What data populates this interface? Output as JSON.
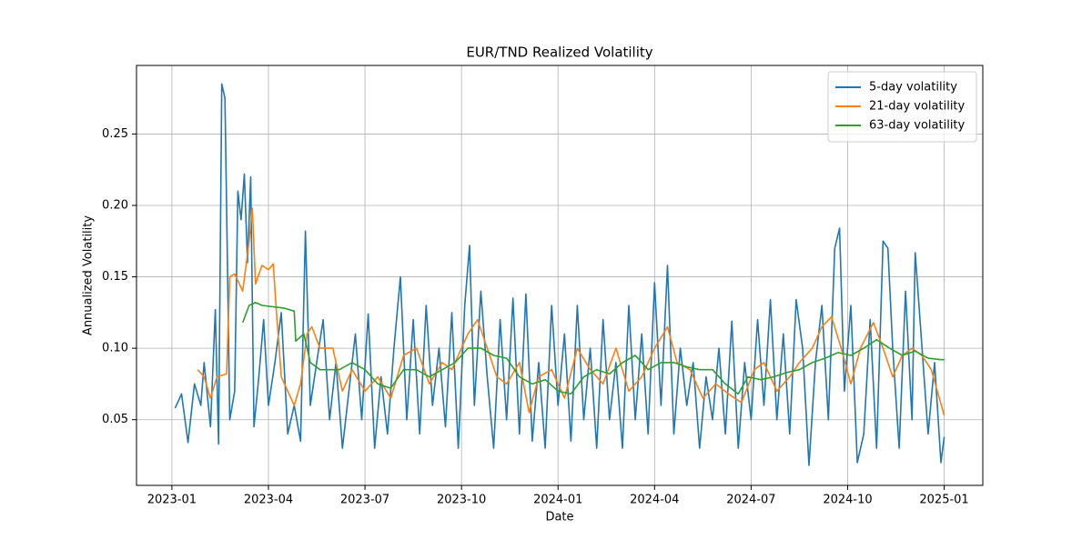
{
  "chart_data": {
    "type": "line",
    "title": "EUR/TND Realized Volatility",
    "xlabel": "Date",
    "ylabel": "Annualized Volatility",
    "grid": true,
    "legend": "upper right",
    "xlim": [
      -1.1,
      25.2
    ],
    "ylim": [
      0.004,
      0.298
    ],
    "xticks": [
      {
        "value": 0,
        "label": "2023-01"
      },
      {
        "value": 3,
        "label": "2023-04"
      },
      {
        "value": 6,
        "label": "2023-07"
      },
      {
        "value": 9,
        "label": "2023-10"
      },
      {
        "value": 12,
        "label": "2024-01"
      },
      {
        "value": 15,
        "label": "2024-04"
      },
      {
        "value": 18,
        "label": "2024-07"
      },
      {
        "value": 21,
        "label": "2024-10"
      },
      {
        "value": 24,
        "label": "2025-01"
      }
    ],
    "yticks": [
      0.05,
      {
        "value": 0.1,
        "label": "0.10"
      },
      0.15,
      {
        "value": 0.2,
        "label": "0.20"
      },
      0.25
    ],
    "series": [
      {
        "name": "5-day volatility",
        "color": "#1f77b4",
        "x": [
          0.1,
          0.3,
          0.5,
          0.7,
          0.9,
          1.0,
          1.2,
          1.35,
          1.45,
          1.55,
          1.65,
          1.8,
          1.95,
          2.05,
          2.15,
          2.25,
          2.35,
          2.45,
          2.55,
          2.7,
          2.85,
          3.0,
          3.2,
          3.4,
          3.6,
          3.8,
          4.0,
          4.15,
          4.3,
          4.5,
          4.7,
          4.9,
          5.1,
          5.3,
          5.5,
          5.7,
          5.9,
          6.1,
          6.3,
          6.5,
          6.7,
          6.9,
          7.1,
          7.3,
          7.5,
          7.7,
          7.9,
          8.1,
          8.3,
          8.5,
          8.7,
          8.9,
          9.1,
          9.25,
          9.4,
          9.6,
          9.8,
          10.0,
          10.2,
          10.4,
          10.6,
          10.8,
          11.0,
          11.2,
          11.4,
          11.6,
          11.8,
          12.0,
          12.2,
          12.4,
          12.6,
          12.8,
          13.0,
          13.2,
          13.4,
          13.6,
          13.8,
          14.0,
          14.2,
          14.4,
          14.6,
          14.8,
          15.0,
          15.2,
          15.4,
          15.6,
          15.8,
          16.0,
          16.2,
          16.4,
          16.6,
          16.8,
          17.0,
          17.2,
          17.4,
          17.6,
          17.8,
          18.0,
          18.2,
          18.4,
          18.6,
          18.8,
          19.0,
          19.2,
          19.4,
          19.6,
          19.8,
          20.0,
          20.2,
          20.4,
          20.6,
          20.75,
          20.9,
          21.1,
          21.3,
          21.5,
          21.7,
          21.9,
          22.1,
          22.25,
          22.4,
          22.6,
          22.8,
          23.0,
          23.1,
          23.25,
          23.5,
          23.7,
          23.9,
          24.0
        ],
        "values": [
          0.058,
          0.068,
          0.034,
          0.075,
          0.06,
          0.09,
          0.045,
          0.127,
          0.033,
          0.285,
          0.275,
          0.05,
          0.07,
          0.21,
          0.19,
          0.222,
          0.16,
          0.22,
          0.045,
          0.08,
          0.12,
          0.06,
          0.09,
          0.125,
          0.04,
          0.06,
          0.035,
          0.182,
          0.06,
          0.09,
          0.12,
          0.05,
          0.09,
          0.03,
          0.07,
          0.11,
          0.05,
          0.124,
          0.03,
          0.08,
          0.04,
          0.1,
          0.15,
          0.05,
          0.12,
          0.04,
          0.13,
          0.06,
          0.1,
          0.045,
          0.125,
          0.03,
          0.13,
          0.172,
          0.06,
          0.14,
          0.08,
          0.03,
          0.12,
          0.05,
          0.135,
          0.04,
          0.138,
          0.035,
          0.09,
          0.03,
          0.13,
          0.06,
          0.11,
          0.035,
          0.13,
          0.05,
          0.1,
          0.03,
          0.12,
          0.05,
          0.09,
          0.03,
          0.13,
          0.05,
          0.11,
          0.04,
          0.146,
          0.06,
          0.158,
          0.04,
          0.1,
          0.06,
          0.09,
          0.03,
          0.08,
          0.05,
          0.1,
          0.04,
          0.119,
          0.03,
          0.09,
          0.05,
          0.12,
          0.06,
          0.134,
          0.05,
          0.11,
          0.04,
          0.134,
          0.1,
          0.018,
          0.09,
          0.13,
          0.05,
          0.17,
          0.184,
          0.07,
          0.13,
          0.02,
          0.04,
          0.12,
          0.03,
          0.175,
          0.17,
          0.1,
          0.03,
          0.14,
          0.05,
          0.167,
          0.12,
          0.04,
          0.09,
          0.02,
          0.038
        ]
      },
      {
        "name": "21-day volatility",
        "color": "#ff7f0e",
        "x": [
          0.8,
          1.0,
          1.2,
          1.4,
          1.7,
          1.8,
          1.95,
          2.2,
          2.4,
          2.5,
          2.6,
          2.8,
          3.0,
          3.15,
          3.25,
          3.4,
          3.6,
          3.8,
          4.0,
          4.2,
          4.35,
          4.6,
          5.0,
          5.3,
          5.6,
          6.0,
          6.4,
          6.8,
          7.2,
          7.6,
          8.0,
          8.4,
          8.7,
          9.0,
          9.2,
          9.5,
          9.8,
          10.1,
          10.4,
          10.8,
          11.1,
          11.4,
          11.8,
          12.2,
          12.6,
          13.0,
          13.4,
          13.8,
          14.2,
          14.6,
          15.0,
          15.4,
          15.7,
          16.1,
          16.5,
          16.9,
          17.3,
          17.7,
          18.1,
          18.4,
          18.8,
          19.2,
          19.5,
          19.9,
          20.2,
          20.5,
          20.8,
          21.1,
          21.4,
          21.8,
          22.1,
          22.4,
          22.7,
          23.0,
          23.3,
          23.6,
          24.0
        ],
        "values": [
          0.085,
          0.08,
          0.065,
          0.08,
          0.082,
          0.15,
          0.152,
          0.14,
          0.175,
          0.198,
          0.145,
          0.158,
          0.155,
          0.159,
          0.125,
          0.08,
          0.07,
          0.06,
          0.075,
          0.11,
          0.115,
          0.1,
          0.1,
          0.07,
          0.085,
          0.07,
          0.08,
          0.065,
          0.095,
          0.1,
          0.075,
          0.09,
          0.085,
          0.1,
          0.11,
          0.12,
          0.1,
          0.08,
          0.075,
          0.09,
          0.055,
          0.08,
          0.085,
          0.065,
          0.1,
          0.085,
          0.075,
          0.1,
          0.07,
          0.08,
          0.1,
          0.115,
          0.09,
          0.085,
          0.065,
          0.075,
          0.068,
          0.062,
          0.085,
          0.09,
          0.07,
          0.08,
          0.09,
          0.1,
          0.115,
          0.122,
          0.1,
          0.075,
          0.1,
          0.118,
          0.1,
          0.08,
          0.095,
          0.1,
          0.095,
          0.085,
          0.053
        ]
      },
      {
        "name": "63-day volatility",
        "color": "#2ca02c",
        "x": [
          2.2,
          2.4,
          2.6,
          2.8,
          3.5,
          3.8,
          3.85,
          4.1,
          4.3,
          4.6,
          5.2,
          5.6,
          6.0,
          6.4,
          6.8,
          7.2,
          7.6,
          8.0,
          8.4,
          8.8,
          9.2,
          9.6,
          10.0,
          10.4,
          10.8,
          11.2,
          11.6,
          12.0,
          12.4,
          12.8,
          13.2,
          13.6,
          14.0,
          14.4,
          14.8,
          15.2,
          15.6,
          16.0,
          16.4,
          16.8,
          17.2,
          17.6,
          17.9,
          18.3,
          18.7,
          19.1,
          19.5,
          19.9,
          20.3,
          20.7,
          21.1,
          21.5,
          21.9,
          22.3,
          22.7,
          23.1,
          23.5,
          23.9,
          24.0
        ],
        "values": [
          0.118,
          0.13,
          0.132,
          0.13,
          0.128,
          0.126,
          0.105,
          0.11,
          0.09,
          0.085,
          0.085,
          0.09,
          0.085,
          0.075,
          0.072,
          0.085,
          0.085,
          0.08,
          0.085,
          0.09,
          0.1,
          0.1,
          0.095,
          0.093,
          0.08,
          0.075,
          0.078,
          0.07,
          0.068,
          0.08,
          0.085,
          0.082,
          0.09,
          0.095,
          0.085,
          0.09,
          0.09,
          0.087,
          0.085,
          0.085,
          0.075,
          0.068,
          0.08,
          0.078,
          0.08,
          0.083,
          0.085,
          0.09,
          0.093,
          0.097,
          0.095,
          0.1,
          0.106,
          0.1,
          0.095,
          0.098,
          0.093,
          0.092,
          0.092
        ]
      }
    ]
  }
}
